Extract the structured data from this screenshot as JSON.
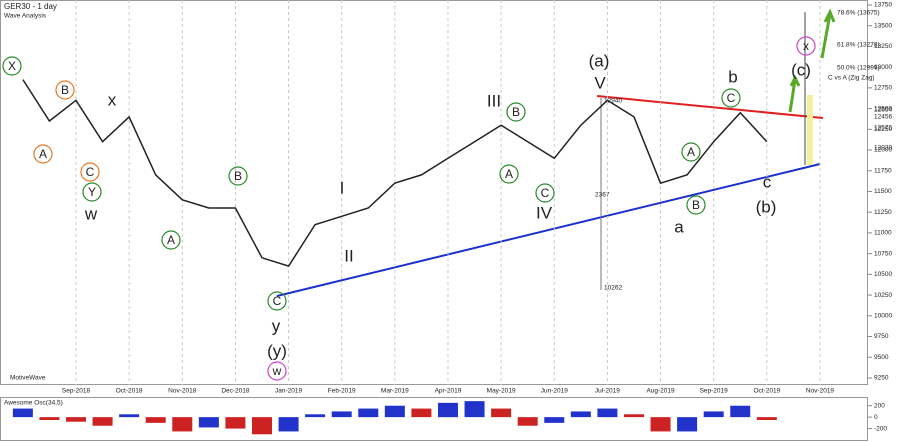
{
  "header": {
    "symbol": "GER30 - 1 day",
    "study": "Wave Analysis",
    "brand": "MotiveWave"
  },
  "chart_data": [
    {
      "type": "line",
      "categories": [
        null,
        null,
        "Sep-2018",
        null,
        "Oct-2018",
        null,
        "Nov-2018",
        null,
        "Dec-2018",
        null,
        "Jan-2019",
        null,
        "Feb-2019",
        null,
        "Mar-2019",
        null,
        "Apr-2019",
        null,
        "May-2019",
        null,
        "Jun-2019",
        null,
        "Jul-2019",
        null,
        "Aug-2019",
        null,
        "Sep-2019",
        null,
        "Oct-2019",
        null,
        "Nov-2019"
      ],
      "series": [
        {
          "name": "GER30",
          "color": "#222222",
          "values": [
            12850,
            12350,
            12600,
            12100,
            12400,
            11700,
            11400,
            11300,
            11300,
            10700,
            10600,
            11100,
            11200,
            11300,
            11600,
            11700,
            11900,
            12100,
            12300,
            12100,
            11900,
            12300,
            12600,
            12400,
            11600,
            11700,
            12100,
            12450,
            12100,
            null,
            null
          ]
        }
      ],
      "ylim": [
        9165,
        13810
      ],
      "yticks": [
        9250,
        9500,
        9750,
        10000,
        10250,
        10500,
        10750,
        11000,
        11250,
        11500,
        11750,
        12000,
        12250,
        12500,
        12750,
        13000,
        13250,
        13500,
        13750
      ],
      "grid": true
    },
    {
      "type": "bar",
      "title": "Awesome Osc(34,5)",
      "up_color": "#2233cc",
      "down_color": "#cc2222",
      "values": [
        150,
        -50,
        -80,
        -150,
        50,
        -100,
        -250,
        -180,
        -200,
        -300,
        -250,
        50,
        100,
        150,
        200,
        150,
        250,
        280,
        150,
        -150,
        -100,
        100,
        150,
        50,
        -250,
        -250,
        100,
        200,
        -50,
        null,
        null
      ],
      "ylim": [
        -400,
        300
      ],
      "yticks": [
        200,
        0,
        -200
      ]
    }
  ],
  "wave_labels": [
    {
      "text": "X",
      "color": "#2a8a2a"
    },
    {
      "text": "B",
      "color": "#e87722"
    },
    {
      "text": "A",
      "color": "#e87722"
    },
    {
      "text": "C",
      "color": "#e87722"
    },
    {
      "text": "Y",
      "color": "#2a8a2a"
    },
    {
      "text": "w",
      "color": "#1a1aa0"
    },
    {
      "text": "x",
      "color": "#1a1aa0"
    },
    {
      "text": "B",
      "color": "#2a8a2a"
    },
    {
      "text": "A",
      "color": "#2a8a2a"
    },
    {
      "text": "C",
      "color": "#2a8a2a"
    },
    {
      "text": "y",
      "color": "#1a1aa0"
    },
    {
      "text": "(y)",
      "color": "#7a1f7a"
    },
    {
      "text": "w",
      "color": "#d040d0"
    },
    {
      "text": "I",
      "color": "#1a1aa0"
    },
    {
      "text": "II",
      "color": "#1a1aa0"
    },
    {
      "text": "III",
      "color": "#1a1aa0"
    },
    {
      "text": "B",
      "color": "#2a8a2a"
    },
    {
      "text": "A",
      "color": "#2a8a2a"
    },
    {
      "text": "C",
      "color": "#2a8a2a"
    },
    {
      "text": "IV",
      "color": "#1a1aa0"
    },
    {
      "text": "(a)",
      "color": "#7a1f7a"
    },
    {
      "text": "V",
      "color": "#1a1aa0"
    },
    {
      "text": "a",
      "color": "#1a1aa0"
    },
    {
      "text": "A",
      "color": "#2a8a2a"
    },
    {
      "text": "B",
      "color": "#2a8a2a"
    },
    {
      "text": "b",
      "color": "#1a1aa0"
    },
    {
      "text": "C",
      "color": "#2a8a2a"
    },
    {
      "text": "c",
      "color": "#1a1aa0"
    },
    {
      "text": "(b)",
      "color": "#7a1f7a"
    },
    {
      "text": "x",
      "color": "#d040d0"
    },
    {
      "text": "(c)",
      "color": "#7a1f7a"
    }
  ],
  "fib_labels": [
    "78.6% (13675)",
    "61.8% (13278)",
    "50.0% (12999)",
    "C vs A (Zig Zag)"
  ],
  "measure_labels": [
    "12940",
    "2367",
    "10262"
  ],
  "price_tags": [
    "12654",
    "12456",
    "12576",
    "12030"
  ]
}
